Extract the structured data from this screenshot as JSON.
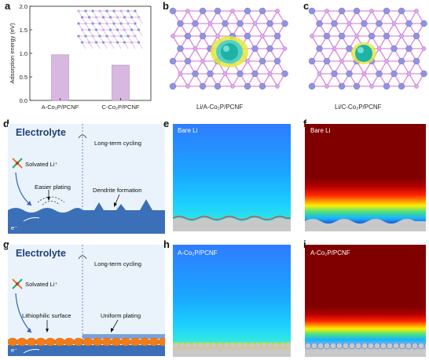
{
  "panels": {
    "a": {
      "letter": "a",
      "ylabel": "Adsorption energy (eV)",
      "inset_label": ""
    },
    "b": {
      "letter": "b",
      "caption": "Li/A-Co₂P/PCNF"
    },
    "c": {
      "letter": "c",
      "caption": "Li/C-Co₂P/PCNF"
    },
    "d": {
      "letter": "d",
      "title": "Electrolyte",
      "cycling": "Long-term cycling",
      "solvated": "Solvated Li⁺",
      "easier": "Easier plating",
      "dendrite": "Dendrite formation",
      "electron": "e⁻"
    },
    "e": {
      "letter": "e",
      "label": "Bare Li"
    },
    "f": {
      "letter": "f",
      "label": "Bare Li"
    },
    "g": {
      "letter": "g",
      "title": "Electrolyte",
      "cycling": "Long-term cycling",
      "solvated": "Solvated Li⁺",
      "lithiophilic": "Lithiophilic surface",
      "uniform": "Uniform plating",
      "electron": "e⁻"
    },
    "h": {
      "letter": "h",
      "label": "A-Co₂P/PCNF"
    },
    "i": {
      "letter": "i",
      "label": "A-Co₂P/PCNF"
    }
  },
  "chart_data": {
    "type": "bar",
    "categories": [
      "A-Co₂P/PCNF",
      "C-Co₂P/PCNF"
    ],
    "values": [
      0.97,
      0.75
    ],
    "title": "",
    "xlabel": "",
    "ylabel": "Adsorption energy (eV)",
    "ylim": [
      0,
      2.0
    ],
    "yticks": [
      "0.0",
      "0.5",
      "1.0",
      "1.5",
      "2.0"
    ],
    "bar_color": "#d8b8e0",
    "bar_edge": "#b58cc4"
  },
  "colors": {
    "sim_blue_top": "#2a8cff",
    "sim_red": "#800000",
    "electrolyte_bg": "#eaf3fb",
    "li_blue": "#3b6fb8",
    "orange": "#f07d1a"
  }
}
